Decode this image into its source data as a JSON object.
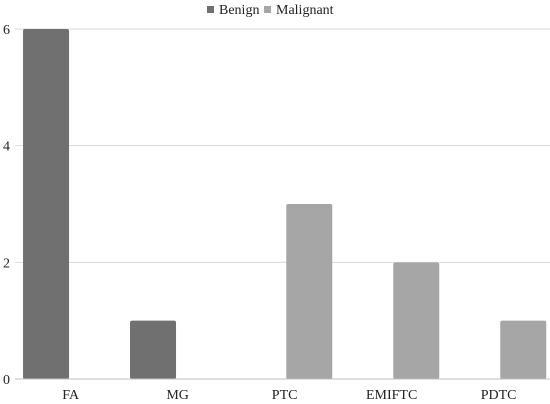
{
  "chart_data": {
    "type": "bar",
    "title": "",
    "xlabel": "",
    "ylabel": "",
    "categories": [
      "FA",
      "MG",
      "PTC",
      "EMIFTC",
      "PDTC"
    ],
    "series": [
      {
        "name": "Benign",
        "color": "#707070",
        "values": [
          6,
          1,
          0,
          0,
          0
        ]
      },
      {
        "name": "Malignant",
        "color": "#a6a6a6",
        "values": [
          0,
          0,
          3,
          2,
          1
        ]
      }
    ],
    "ylim": [
      0,
      6
    ],
    "yticks": [
      0,
      2,
      4,
      6
    ],
    "grid": true,
    "legend_position": "top-center"
  }
}
